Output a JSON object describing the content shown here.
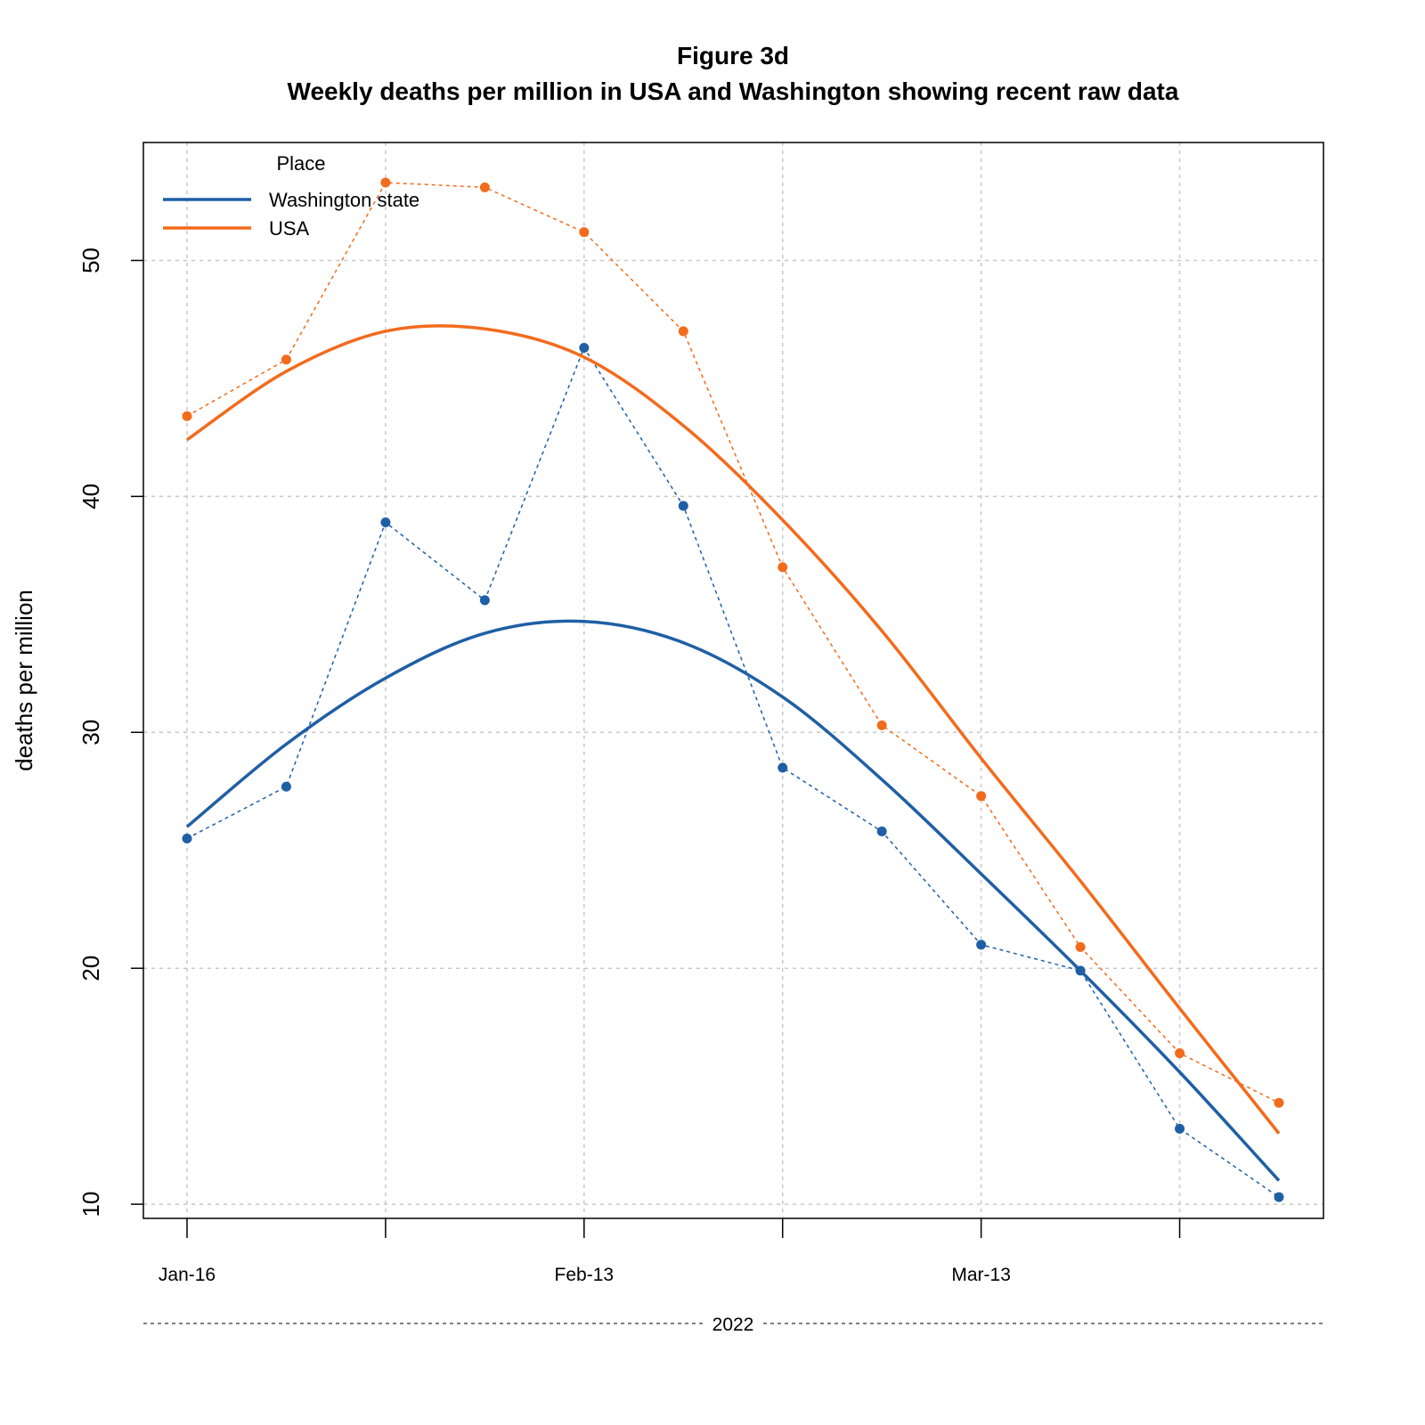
{
  "chart_data": {
    "type": "line",
    "title": "Figure 3d",
    "subtitle": "Weekly deaths per million in USA and Washington showing recent raw data",
    "xlabel": "2022",
    "ylabel": "deaths per million",
    "x": [
      "2022-01-16",
      "2022-01-23",
      "2022-01-30",
      "2022-02-06",
      "2022-02-13",
      "2022-02-20",
      "2022-02-27",
      "2022-03-06",
      "2022-03-13",
      "2022-03-20",
      "2022-03-27",
      "2022-04-03"
    ],
    "x_tick_labels": [
      {
        "date": "2022-01-16",
        "label": "Jan-16"
      },
      {
        "date": "2022-02-13",
        "label": "Feb-13"
      },
      {
        "date": "2022-03-13",
        "label": "Mar-13"
      }
    ],
    "x_tick_dates": [
      "2022-01-16",
      "2022-01-30",
      "2022-02-13",
      "2022-02-27",
      "2022-03-13",
      "2022-03-27"
    ],
    "ylim": [
      9.4,
      55
    ],
    "y_ticks": [
      10,
      20,
      30,
      40,
      50
    ],
    "grid": true,
    "legend": {
      "title": "Place",
      "position": "top-left",
      "entries": [
        "Washington state",
        "USA"
      ]
    },
    "series": [
      {
        "name": "Washington state",
        "color": "#1f5fa5",
        "raw": [
          25.5,
          27.7,
          38.9,
          35.6,
          46.3,
          39.6,
          28.5,
          25.8,
          21.0,
          19.9,
          13.2,
          10.3
        ],
        "smoothed": [
          26.0,
          29.5,
          32.3,
          34.2,
          34.7,
          33.8,
          31.5,
          28.0,
          24.0,
          19.9,
          15.6,
          11.0
        ]
      },
      {
        "name": "USA",
        "color": "#f26b1d",
        "raw": [
          43.4,
          45.8,
          53.3,
          53.1,
          51.2,
          47.0,
          37.0,
          30.3,
          27.3,
          20.9,
          16.4,
          14.3
        ],
        "smoothed": [
          42.4,
          45.3,
          47.0,
          47.1,
          45.9,
          43.0,
          39.0,
          34.3,
          28.9,
          23.7,
          18.3,
          13.0
        ]
      }
    ]
  }
}
